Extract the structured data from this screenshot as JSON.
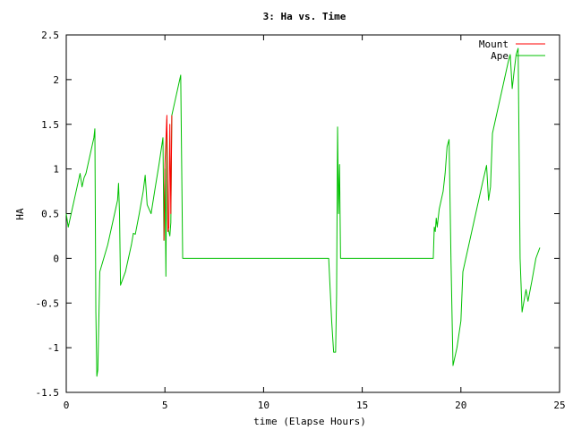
{
  "chart_data": {
    "type": "line",
    "title": "3: Ha vs. Time",
    "xlabel": "time (Elapse Hours)",
    "ylabel": "HA",
    "xlim": [
      0,
      25
    ],
    "ylim": [
      -1.5,
      2.5
    ],
    "xticks": [
      0,
      5,
      10,
      15,
      20,
      25
    ],
    "yticks": [
      -1.5,
      -1,
      -0.5,
      0,
      0.5,
      1,
      1.5,
      2,
      2.5
    ],
    "grid": false,
    "legend_position": "top-right",
    "series": [
      {
        "name": "Mount",
        "color": "#ff0000",
        "points": [
          [
            4.95,
            0.2
          ],
          [
            5.0,
            1.05
          ],
          [
            5.1,
            1.6
          ],
          [
            5.15,
            0.3
          ],
          [
            5.2,
            0.35
          ],
          [
            5.25,
            1.5
          ],
          [
            5.3,
            0.5
          ],
          [
            5.35,
            1.6
          ]
        ]
      },
      {
        "name": "Ape",
        "color": "#00c000",
        "points": [
          [
            0,
            0.5
          ],
          [
            0.1,
            0.35
          ],
          [
            0.3,
            0.55
          ],
          [
            0.5,
            0.75
          ],
          [
            0.7,
            0.95
          ],
          [
            0.8,
            0.8
          ],
          [
            0.9,
            0.9
          ],
          [
            1.0,
            0.95
          ],
          [
            1.2,
            1.15
          ],
          [
            1.4,
            1.35
          ],
          [
            1.45,
            1.45
          ],
          [
            1.5,
            -0.6
          ],
          [
            1.55,
            -1.32
          ],
          [
            1.6,
            -1.25
          ],
          [
            1.7,
            -0.15
          ],
          [
            1.9,
            0.0
          ],
          [
            2.1,
            0.15
          ],
          [
            2.4,
            0.45
          ],
          [
            2.6,
            0.65
          ],
          [
            2.65,
            0.84
          ],
          [
            2.7,
            0.5
          ],
          [
            2.75,
            -0.3
          ],
          [
            3.0,
            -0.15
          ],
          [
            3.3,
            0.15
          ],
          [
            3.4,
            0.28
          ],
          [
            3.5,
            0.27
          ],
          [
            3.7,
            0.5
          ],
          [
            3.9,
            0.75
          ],
          [
            4.0,
            0.93
          ],
          [
            4.1,
            0.6
          ],
          [
            4.3,
            0.5
          ],
          [
            4.5,
            0.78
          ],
          [
            4.7,
            1.05
          ],
          [
            4.9,
            1.35
          ],
          [
            4.95,
            0.2
          ],
          [
            5.0,
            1.0
          ],
          [
            5.05,
            -0.2
          ],
          [
            5.1,
            1.55
          ],
          [
            5.15,
            0.35
          ],
          [
            5.2,
            0.3
          ],
          [
            5.25,
            0.25
          ],
          [
            5.3,
            0.4
          ],
          [
            5.35,
            1.6
          ],
          [
            5.5,
            1.75
          ],
          [
            5.7,
            1.95
          ],
          [
            5.8,
            2.05
          ],
          [
            5.9,
            0.0
          ],
          [
            13.3,
            0.0
          ],
          [
            13.45,
            -0.7
          ],
          [
            13.55,
            -1.05
          ],
          [
            13.65,
            -1.05
          ],
          [
            13.7,
            -0.4
          ],
          [
            13.75,
            1.47
          ],
          [
            13.8,
            0.5
          ],
          [
            13.85,
            1.05
          ],
          [
            13.9,
            0.0
          ],
          [
            18.6,
            0.0
          ],
          [
            18.65,
            0.35
          ],
          [
            18.7,
            0.3
          ],
          [
            18.75,
            0.45
          ],
          [
            18.8,
            0.35
          ],
          [
            18.9,
            0.55
          ],
          [
            19.1,
            0.75
          ],
          [
            19.2,
            0.95
          ],
          [
            19.3,
            1.25
          ],
          [
            19.4,
            1.33
          ],
          [
            19.5,
            -0.05
          ],
          [
            19.6,
            -1.2
          ],
          [
            19.8,
            -1.0
          ],
          [
            20.0,
            -0.7
          ],
          [
            20.1,
            -0.15
          ],
          [
            20.3,
            0.05
          ],
          [
            20.6,
            0.35
          ],
          [
            20.9,
            0.65
          ],
          [
            21.1,
            0.85
          ],
          [
            21.3,
            1.04
          ],
          [
            21.4,
            0.65
          ],
          [
            21.5,
            0.8
          ],
          [
            21.6,
            1.4
          ],
          [
            21.8,
            1.6
          ],
          [
            22.0,
            1.8
          ],
          [
            22.2,
            2.0
          ],
          [
            22.4,
            2.2
          ],
          [
            22.5,
            2.28
          ],
          [
            22.6,
            1.9
          ],
          [
            22.7,
            2.1
          ],
          [
            22.8,
            2.28
          ],
          [
            22.9,
            2.35
          ],
          [
            23.0,
            0.0
          ],
          [
            23.1,
            -0.6
          ],
          [
            23.3,
            -0.35
          ],
          [
            23.4,
            -0.48
          ],
          [
            23.6,
            -0.25
          ],
          [
            23.8,
            0.0
          ],
          [
            24.0,
            0.12
          ]
        ]
      }
    ]
  }
}
